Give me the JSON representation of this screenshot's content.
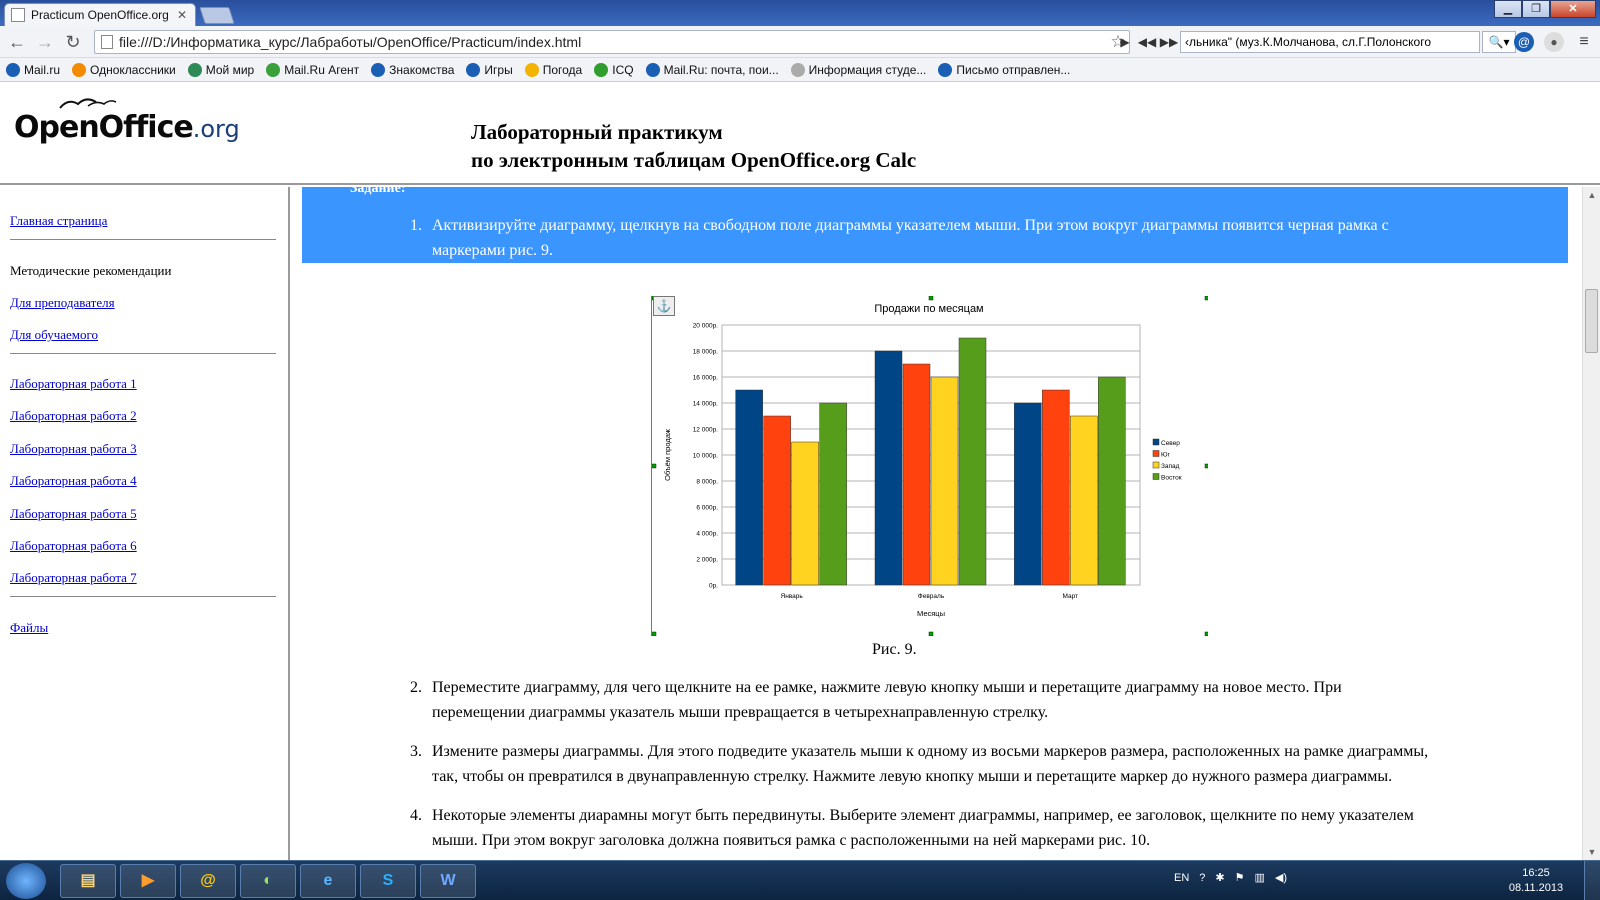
{
  "browser": {
    "tab_title": "Practicum OpenOffice.org",
    "url": "file:///D:/Информатика_курс/Лабработы/OpenOffice/Practicum/index.html",
    "player_track": "‹​льника\" (муз.К.Молчанова, сл.Г.Полонского",
    "ext_badge": "53"
  },
  "bookmarks": [
    {
      "label": "Mail.ru",
      "color": "#1a5fb4"
    },
    {
      "label": "Одноклассники",
      "color": "#f28b00"
    },
    {
      "label": "Мой мир",
      "color": "#2e8b57"
    },
    {
      "label": "Mail.Ru Агент",
      "color": "#3aa03a"
    },
    {
      "label": "Знакомства",
      "color": "#1a5fb4"
    },
    {
      "label": "Игры",
      "color": "#1a5fb4"
    },
    {
      "label": "Погода",
      "color": "#f2b400"
    },
    {
      "label": "ICQ",
      "color": "#2f9e2f"
    },
    {
      "label": "Mail.Ru: почта, пои...",
      "color": "#1a5fb4"
    },
    {
      "label": "Информация студе...",
      "color": "#aaaaaa"
    },
    {
      "label": "Письмо отправлен...",
      "color": "#1a5fb4"
    }
  ],
  "header": {
    "logo_main": "OpenOffice",
    "logo_suffix": ".org",
    "title_line1": "Лабораторный практикум",
    "title_line2": "по электронным таблицам OpenOffice.org Calc"
  },
  "sidebar": {
    "home": "Главная страница",
    "method": "Методические рекомендации",
    "teacher": "Для преподавателя",
    "student": "Для обучаемого",
    "labs": [
      "Лабораторная работа 1",
      "Лабораторная работа 2",
      "Лабораторная работа 3",
      "Лабораторная работа 4",
      "Лабораторная работа 5",
      "Лабораторная работа 6",
      "Лабораторная работа 7"
    ],
    "files": "Файлы"
  },
  "content": {
    "task_heading": "Задание:",
    "steps": [
      {
        "num": "1.",
        "line1": "Активизируйте диаграмму, щелкнув на свободном поле диаграммы указателем мыши. При этом вокруг диаграммы появится черная рамка с",
        "line2": "маркерами рис. 9."
      },
      {
        "num": "2.",
        "line1": "Переместите диаграмму, для чего щелкните на ее рамке, нажмите левую кнопку мыши и перетащите диаграмму на новое место. При",
        "line2": "перемещении диаграммы указатель мыши превращается в четырехнаправленную стрелку."
      },
      {
        "num": "3.",
        "line1": "Измените размеры диаграммы. Для этого подведите указатель мыши к одному из восьми маркеров размера, расположенных на рамке диаграммы,",
        "line2": "так, чтобы он превратился в двунаправленную стрелку. Нажмите левую кнопку мыши и перетащите маркер до нужного размера диаграммы."
      },
      {
        "num": "4.",
        "line1": "Некоторые элементы диарамны могут быть передвинуты. Выберите элемент диаграммы, например, ее заголовок, щелкните по нему указателем",
        "line2": "мыши. При этом вокруг заголовка должна появиться рамка с расположенными на ней маркерами рис. 10."
      }
    ],
    "figure_caption": "Рис. 9."
  },
  "chart_data": {
    "type": "bar",
    "title": "Продажи по месяцам",
    "xlabel": "Месяцы",
    "ylabel": "Объём продаж",
    "categories": [
      "Январь",
      "Февраль",
      "Март"
    ],
    "series": [
      {
        "name": "Север",
        "color": "#004586",
        "values": [
          15000,
          18000,
          14000
        ]
      },
      {
        "name": "Юг",
        "color": "#ff420e",
        "values": [
          13000,
          17000,
          15000
        ]
      },
      {
        "name": "Запад",
        "color": "#ffd320",
        "values": [
          11000,
          16000,
          13000
        ]
      },
      {
        "name": "Восток",
        "color": "#579d1c",
        "values": [
          14000,
          19000,
          16000
        ]
      }
    ],
    "ylim": [
      0,
      20000
    ],
    "yticks": [
      "0р.",
      "2 000р.",
      "4 000р.",
      "6 000р.",
      "8 000р.",
      "10 000р.",
      "12 000р.",
      "14 000р.",
      "16 000р.",
      "18 000р.",
      "20 000р."
    ],
    "grid": true,
    "legend": "right"
  },
  "taskbar": {
    "lang": "EN",
    "time": "16:25",
    "date": "08.11.2013"
  }
}
